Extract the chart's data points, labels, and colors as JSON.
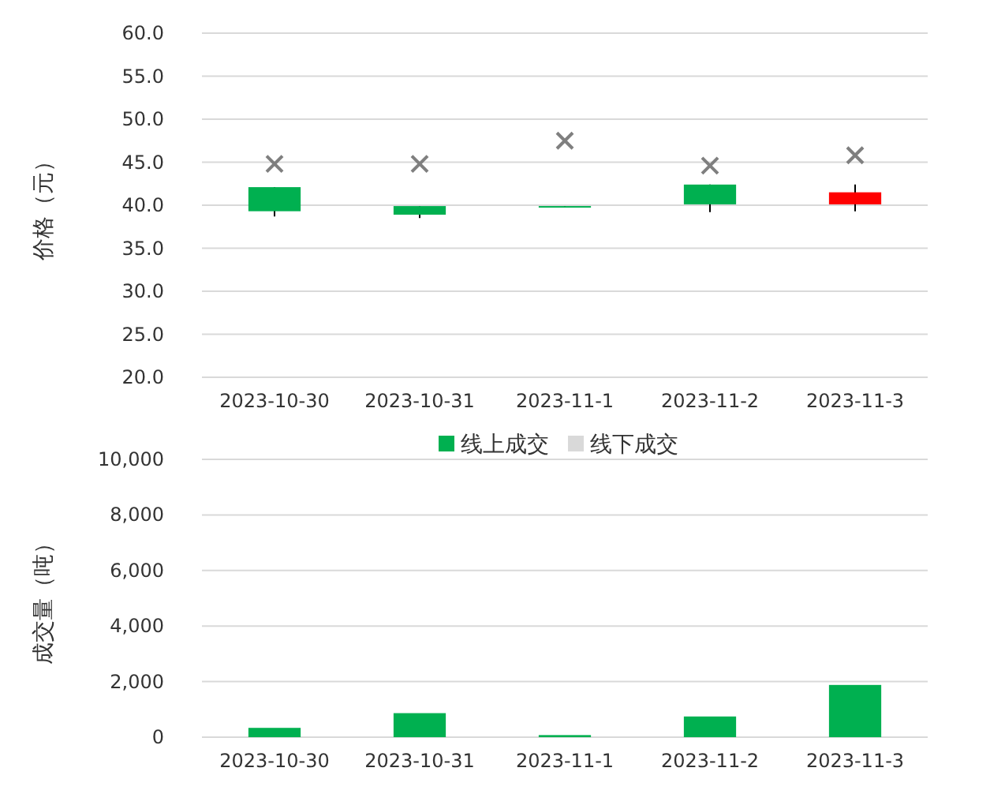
{
  "chart_data": [
    {
      "type": "candlestick",
      "ylabel": "价格（元）",
      "categories": [
        "2023-10-30",
        "2023-10-31",
        "2023-11-1",
        "2023-11-2",
        "2023-11-3"
      ],
      "ohlc": [
        [
          42.1,
          42.1,
          38.7,
          39.3
        ],
        [
          39.9,
          39.9,
          38.5,
          38.9
        ],
        [
          39.9,
          39.9,
          39.8,
          39.8
        ],
        [
          42.4,
          42.4,
          39.2,
          40.1
        ],
        [
          40.1,
          42.4,
          39.3,
          41.5
        ]
      ],
      "colors": [
        "#00b050",
        "#00b050",
        "#00b050",
        "#00b050",
        "#ff0000"
      ],
      "series": [
        {
          "type": "scatter",
          "color": "#7f7f7f",
          "marker": "cross",
          "values": [
            44.8,
            44.8,
            47.5,
            44.6,
            45.8
          ]
        }
      ],
      "ylim": [
        20,
        60
      ],
      "yticks": [
        {
          "value": 20,
          "label": "20.0"
        },
        {
          "value": 25,
          "label": "25.0"
        },
        {
          "value": 30,
          "label": "30.0"
        },
        {
          "value": 35,
          "label": "35.0"
        },
        {
          "value": 40,
          "label": "40.0"
        },
        {
          "value": 45,
          "label": "45.0"
        },
        {
          "value": 50,
          "label": "50.0"
        },
        {
          "value": 55,
          "label": "55.0"
        },
        {
          "value": 60,
          "label": "60.0"
        }
      ],
      "grid": "y",
      "legend": false
    },
    {
      "type": "bar",
      "ylabel": "成交量（吨）",
      "categories": [
        "2023-10-30",
        "2023-10-31",
        "2023-11-1",
        "2023-11-2",
        "2023-11-3"
      ],
      "series": [
        {
          "name": "线上成交",
          "color": "#00b050",
          "values": [
            335,
            865,
            75,
            745,
            1880
          ]
        },
        {
          "name": "线下成交",
          "color": "#d9d9d9",
          "values": [
            0,
            0,
            0,
            0,
            0
          ]
        }
      ],
      "stacked": true,
      "ylim": [
        0,
        10000
      ],
      "yticks": [
        0,
        {
          "value": 2000,
          "label": "2,000"
        },
        {
          "value": 4000,
          "label": "4,000"
        },
        {
          "value": 6000,
          "label": "6,000"
        },
        {
          "value": 8000,
          "label": "8,000"
        },
        {
          "value": 10000,
          "label": "10,000"
        }
      ],
      "grid": "y",
      "legend": "top"
    }
  ]
}
